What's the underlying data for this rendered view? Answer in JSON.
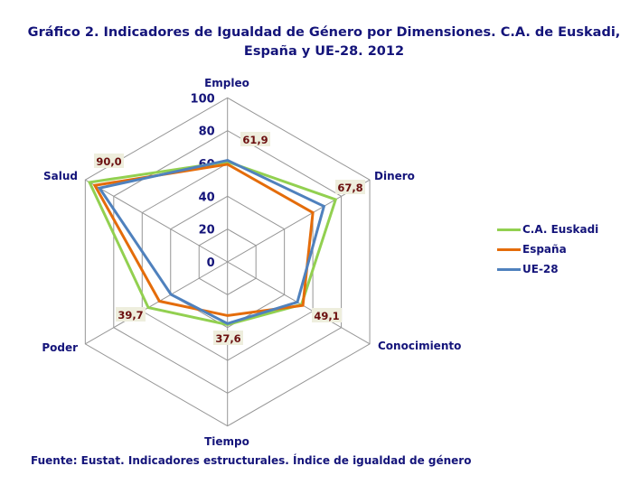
{
  "chart_data": {
    "type": "radar",
    "title": "Gráfico 2. Indicadores de Igualdad de Género por Dimensiones.  C.A. de Euskadi, España y UE-28. 2012",
    "categories": [
      "Empleo",
      "Dinero",
      "Conocimiento",
      "Tiempo",
      "Poder",
      "Salud"
    ],
    "rlim": [
      0,
      100
    ],
    "ticks": [
      "0",
      "20",
      "40",
      "60",
      "80",
      "100"
    ],
    "grid": true,
    "legend_position": "right",
    "series": [
      {
        "name": "C.A. Euskadi",
        "color": "#92d050",
        "values": [
          61,
          76,
          52,
          38.2,
          55.7,
          97
        ]
      },
      {
        "name": "España",
        "color": "#e46c0a",
        "values": [
          59.5,
          60,
          53,
          32.7,
          47.9,
          93.3
        ]
      },
      {
        "name": "UE-28",
        "color": "#4f81bd",
        "values": [
          61.9,
          67.8,
          49.1,
          37.6,
          39.7,
          90.0
        ]
      }
    ],
    "data_labels": [
      "61,9",
      "67,8",
      "49,1",
      "37,6",
      "39,7",
      "90,0"
    ],
    "source": "Fuente: Eustat. Indicadores estructurales. Índice de igualdad de género"
  }
}
